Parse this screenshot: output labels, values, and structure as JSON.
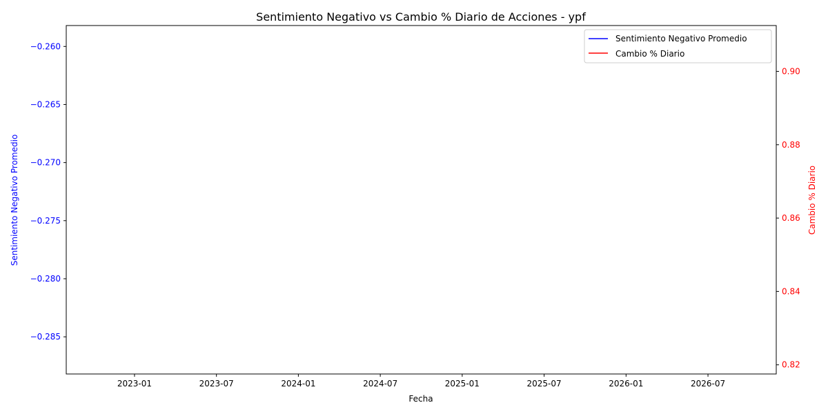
{
  "chart_data": {
    "type": "line",
    "title": "Sentimiento Negativo vs Cambio % Diario de Acciones - ypf",
    "xlabel": "Fecha",
    "ylabel_left": "Sentimiento Negativo Promedio",
    "ylabel_right": "Cambio % Diario",
    "x_ticks": [
      "2023-01",
      "2023-07",
      "2024-01",
      "2024-07",
      "2025-01",
      "2025-07",
      "2026-01",
      "2026-07"
    ],
    "y_left_ticks": [
      "−0.260",
      "−0.265",
      "−0.270",
      "−0.275",
      "−0.280",
      "−0.285"
    ],
    "y_right_ticks": [
      "0.90",
      "0.88",
      "0.86",
      "0.84",
      "0.82"
    ],
    "y_left_values": [
      -0.26,
      -0.265,
      -0.27,
      -0.275,
      -0.28,
      -0.285
    ],
    "y_right_values": [
      0.9,
      0.88,
      0.86,
      0.84,
      0.82
    ],
    "ylim_left": [
      -0.2882,
      -0.2582
    ],
    "ylim_right": [
      0.8175,
      0.9125
    ],
    "xlim": [
      "2022-08",
      "2026-12"
    ],
    "series": [
      {
        "name": "Sentimiento Negativo Promedio",
        "axis": "left",
        "color": "#0000ff",
        "values": []
      },
      {
        "name": "Cambio % Diario",
        "axis": "right",
        "color": "#ff0000",
        "values": []
      }
    ],
    "legend_position": "top-right",
    "grid": false
  }
}
